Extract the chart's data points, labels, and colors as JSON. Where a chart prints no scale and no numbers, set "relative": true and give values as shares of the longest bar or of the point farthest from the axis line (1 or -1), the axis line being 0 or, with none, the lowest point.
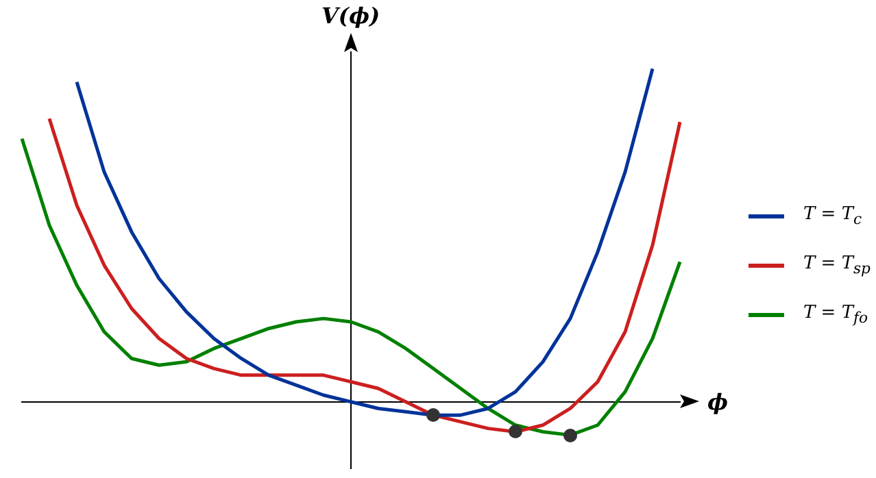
{
  "chart_data": {
    "type": "line",
    "relative": true,
    "xlabel": "ϕ",
    "ylabel": "V(ϕ)",
    "legend": "right",
    "marker": "none",
    "categories": [
      null,
      null,
      null,
      null,
      null,
      null,
      null,
      null,
      null,
      null,
      null,
      null,
      null,
      null,
      null,
      null,
      null,
      null,
      null,
      null,
      null,
      null,
      null,
      null,
      null
    ],
    "series": [
      {
        "name": "T = T$_{c}$",
        "color": "#003399",
        "values": [
          null,
          null,
          0.96,
          0.69,
          0.51,
          0.37,
          0.27,
          0.19,
          0.13,
          0.08,
          0.05,
          0.02,
          0,
          -0.02,
          -0.03,
          -0.04,
          -0.04,
          -0.02,
          0.03,
          0.12,
          0.25,
          0.45,
          0.69,
          1.0,
          null
        ]
      },
      {
        "name": "T = T$_{sp}$",
        "color": "#cc1f1f",
        "values": [
          null,
          0.85,
          0.59,
          0.41,
          0.28,
          0.19,
          0.13,
          0.1,
          0.08,
          0.08,
          0.08,
          0.08,
          0.06,
          0.04,
          0,
          -0.04,
          -0.06,
          -0.08,
          -0.09,
          -0.07,
          -0.02,
          0.06,
          0.21,
          0.47,
          0.84
        ]
      },
      {
        "name": "T = T$_{fo}$",
        "color": "#008000",
        "values": [
          0.79,
          0.53,
          0.35,
          0.21,
          0.13,
          0.11,
          0.12,
          0.16,
          0.19,
          0.22,
          0.24,
          0.25,
          0.24,
          0.21,
          0.16,
          0.1,
          0.04,
          -0.02,
          -0.07,
          -0.09,
          -0.1,
          -0.07,
          0.03,
          0.19,
          0.42
        ]
      }
    ]
  }
}
